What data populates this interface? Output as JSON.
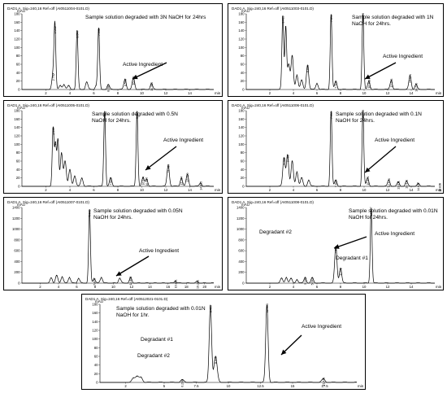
{
  "colors": {
    "trace": "#000000",
    "frame": "#000000",
    "background": "#ffffff"
  },
  "chart_data": [
    {
      "type": "line",
      "header": "DAD1 A, Sig=240,16 Ref=off (AI0511004-0101.D)",
      "ylabel": "mAU",
      "xlabel": "min",
      "ylim": [
        0,
        180
      ],
      "xlim": [
        0,
        16
      ],
      "yticks": [
        "0",
        "20",
        "40",
        "60",
        "80",
        "100",
        "120",
        "140",
        "160",
        "180"
      ],
      "xticks": [
        "2",
        "4",
        "6",
        "8",
        "10",
        "12",
        "14"
      ],
      "annotation": "Sample solution degraded with 3N NaOH for 24hrs",
      "arrow_label": "Active Ingredient",
      "peaks": [
        {
          "x": 2.6,
          "y": 38,
          "label": "2.792"
        },
        {
          "x": 2.75,
          "y": 150,
          "label": "3.051"
        },
        {
          "x": 3.2,
          "y": 10
        },
        {
          "x": 3.5,
          "y": 12
        },
        {
          "x": 3.9,
          "y": 9
        },
        {
          "x": 4.6,
          "y": 140,
          "label": "5.544"
        },
        {
          "x": 5.4,
          "y": 18
        },
        {
          "x": 6.2,
          "y": 10
        },
        {
          "x": 6.4,
          "y": 145,
          "label": "7.448"
        },
        {
          "x": 7.2,
          "y": 12,
          "label": "8.280"
        },
        {
          "x": 8.6,
          "y": 25,
          "label": "9.506"
        },
        {
          "x": 9.3,
          "y": 28,
          "label": "10.083"
        },
        {
          "x": 10.8,
          "y": 14,
          "label": "11.355"
        }
      ]
    },
    {
      "type": "line",
      "header": "DAD1 A, Sig=240,16 Ref=off (AI0511003-0101.D)",
      "ylabel": "mAU",
      "xlabel": "min",
      "ylim": [
        0,
        180
      ],
      "xlim": [
        0,
        16
      ],
      "yticks": [
        "0",
        "20",
        "40",
        "60",
        "80",
        "100",
        "120",
        "140",
        "160",
        "180"
      ],
      "xticks": [
        "2",
        "4",
        "6",
        "8",
        "10",
        "12",
        "14"
      ],
      "annotation": "Sample solution degraded with 1N NaOH for 24hrs.",
      "arrow_label": "Active Ingredient",
      "peaks": [
        {
          "x": 3.1,
          "y": 175,
          "label": "3.415"
        },
        {
          "x": 3.35,
          "y": 150
        },
        {
          "x": 3.6,
          "y": 60
        },
        {
          "x": 3.9,
          "y": 80
        },
        {
          "x": 4.3,
          "y": 35
        },
        {
          "x": 4.7,
          "y": 22
        },
        {
          "x": 5.2,
          "y": 58,
          "label": "5.606"
        },
        {
          "x": 6.0,
          "y": 15
        },
        {
          "x": 7.2,
          "y": 178,
          "label": "7.396"
        },
        {
          "x": 7.6,
          "y": 20,
          "label": "7.700"
        },
        {
          "x": 9.9,
          "y": 178,
          "label": "10.099"
        },
        {
          "x": 10.4,
          "y": 20,
          "label": "10.388"
        },
        {
          "x": 12.3,
          "y": 22,
          "label": "12.238"
        },
        {
          "x": 13.9,
          "y": 33,
          "label": "13.971"
        },
        {
          "x": 14.4,
          "y": 12,
          "label": "14.230"
        }
      ]
    },
    {
      "type": "line",
      "header": "DAD1 A, Sig=240,16 Ref=off (AI0511005-0101.D)",
      "ylabel": "mAU",
      "xlabel": "min",
      "ylim": [
        0,
        180
      ],
      "xlim": [
        0,
        16
      ],
      "yticks": [
        "0",
        "20",
        "40",
        "60",
        "80",
        "100",
        "120",
        "140",
        "160",
        "180"
      ],
      "xticks": [
        "2",
        "4",
        "6",
        "8",
        "10",
        "12",
        "14"
      ],
      "annotation": "Sample solution degraded with 0.5N NaOH for 24hrs.",
      "arrow_label": "Active Ingredient",
      "peaks": [
        {
          "x": 2.6,
          "y": 140,
          "label": "2.943"
        },
        {
          "x": 2.8,
          "y": 100
        },
        {
          "x": 3.0,
          "y": 110
        },
        {
          "x": 3.3,
          "y": 80
        },
        {
          "x": 3.6,
          "y": 60
        },
        {
          "x": 4.0,
          "y": 40
        },
        {
          "x": 4.4,
          "y": 25
        },
        {
          "x": 5.0,
          "y": 20
        },
        {
          "x": 6.9,
          "y": 178,
          "label": "7.414"
        },
        {
          "x": 7.4,
          "y": 20,
          "label": "7.839"
        },
        {
          "x": 9.6,
          "y": 178,
          "label": "9.966"
        },
        {
          "x": 10.1,
          "y": 20,
          "label": "10.344"
        },
        {
          "x": 10.4,
          "y": 18,
          "label": "10.567"
        },
        {
          "x": 12.2,
          "y": 50,
          "label": "11.724"
        },
        {
          "x": 13.3,
          "y": 20,
          "label": "12.764"
        },
        {
          "x": 13.8,
          "y": 28,
          "label": "13.169"
        },
        {
          "x": 14.9,
          "y": 8,
          "label": "14.935"
        }
      ]
    },
    {
      "type": "line",
      "header": "DAD1 A, Sig=240,16 Ref=off (AI0511006-0101.D)",
      "ylabel": "mAU",
      "xlabel": "min",
      "ylim": [
        0,
        180
      ],
      "xlim": [
        0,
        16
      ],
      "yticks": [
        "0",
        "20",
        "40",
        "60",
        "80",
        "100",
        "120",
        "140",
        "160",
        "180"
      ],
      "xticks": [
        "2",
        "4",
        "6",
        "8",
        "10",
        "12",
        "14"
      ],
      "annotation": "Sample solution degraded with 0.1N NaOH for 24hrs.",
      "arrow_label": "Active Ingredient",
      "peaks": [
        {
          "x": 3.2,
          "y": 68,
          "label": "3.463"
        },
        {
          "x": 3.5,
          "y": 75,
          "label": "3.750"
        },
        {
          "x": 3.9,
          "y": 60
        },
        {
          "x": 4.3,
          "y": 35
        },
        {
          "x": 4.7,
          "y": 20
        },
        {
          "x": 5.3,
          "y": 15
        },
        {
          "x": 7.2,
          "y": 178,
          "label": "7.415"
        },
        {
          "x": 7.6,
          "y": 15,
          "label": "7.846"
        },
        {
          "x": 9.9,
          "y": 178,
          "label": "10.099"
        },
        {
          "x": 10.3,
          "y": 20,
          "label": "10.371"
        },
        {
          "x": 12.1,
          "y": 15,
          "label": "12.176"
        },
        {
          "x": 12.9,
          "y": 10,
          "label": "13.011"
        },
        {
          "x": 13.6,
          "y": 12,
          "label": "13.471"
        },
        {
          "x": 14.6,
          "y": 6,
          "label": "14.617"
        },
        {
          "x": 16.4,
          "y": 4,
          "label": "16.818"
        },
        {
          "x": 18.3,
          "y": 4,
          "label": "18.289"
        }
      ]
    },
    {
      "type": "line",
      "header": "DAD1 A, Sig=240,16 Ref=off (AI0511007-0101.D)",
      "ylabel": "mAU",
      "xlabel": "min",
      "ylim": [
        0,
        1400
      ],
      "xlim": [
        0,
        21
      ],
      "yticks": [
        "0",
        "200",
        "400",
        "600",
        "800",
        "1000",
        "1200",
        "1400"
      ],
      "xticks": [
        "2",
        "4",
        "6",
        "8",
        "10",
        "12",
        "14",
        "16",
        "18",
        "20"
      ],
      "annotation": "Sample solution degraded with 0.05N NaOH for 24hrs.",
      "arrow_label": "Active Ingredient",
      "peaks": [
        {
          "x": 3.2,
          "y": 100
        },
        {
          "x": 3.8,
          "y": 140
        },
        {
          "x": 4.4,
          "y": 120
        },
        {
          "x": 5.2,
          "y": 110
        },
        {
          "x": 6.2,
          "y": 90
        },
        {
          "x": 7.4,
          "y": 1360,
          "label": "7.440"
        },
        {
          "x": 7.9,
          "y": 90,
          "label": "7.870"
        },
        {
          "x": 8.7,
          "y": 110
        },
        {
          "x": 10.7,
          "y": 95
        },
        {
          "x": 11.9,
          "y": 100,
          "label": "11.855"
        },
        {
          "x": 16.8,
          "y": 40,
          "label": "16.851"
        },
        {
          "x": 19.2,
          "y": 30,
          "label": "19.281"
        }
      ]
    },
    {
      "type": "line",
      "header": "DAD1 A, Sig=240,16 Ref=off (AI0511008-0101.D)",
      "ylabel": "mAU",
      "xlabel": "min",
      "ylim": [
        0,
        1400
      ],
      "xlim": [
        0,
        16
      ],
      "yticks": [
        "0",
        "200",
        "400",
        "600",
        "800",
        "1000",
        "1200",
        "1400"
      ],
      "xticks": [
        "2",
        "4",
        "6",
        "8",
        "10",
        "12",
        "14"
      ],
      "annotation": "Sample solution degraded with 0.01N NaOH for 24hrs.",
      "arrow_label": "Active Ingredient",
      "labels": [
        "Degradant #2",
        "Degradant #1"
      ],
      "peaks": [
        {
          "x": 3.0,
          "y": 90
        },
        {
          "x": 3.4,
          "y": 110
        },
        {
          "x": 3.8,
          "y": 85
        },
        {
          "x": 4.3,
          "y": 70
        },
        {
          "x": 5.0,
          "y": 110,
          "label": "5.199"
        },
        {
          "x": 5.6,
          "y": 100,
          "label": "5.642"
        },
        {
          "x": 7.6,
          "y": 680,
          "label": "7.890"
        },
        {
          "x": 8.0,
          "y": 280,
          "label": "8.271"
        },
        {
          "x": 10.6,
          "y": 1380,
          "label": "10.667"
        }
      ]
    },
    {
      "type": "line",
      "header": "DAD1 A, Sig=240,16 Ref=off (AI0512021-0101.D)",
      "ylabel": "mAU",
      "xlabel": "min",
      "ylim": [
        0,
        180
      ],
      "xlim": [
        0,
        20
      ],
      "yticks": [
        "0",
        "20",
        "40",
        "60",
        "80",
        "100",
        "120",
        "140",
        "160",
        "180"
      ],
      "xticks": [
        "2",
        "5",
        "7.5",
        "10",
        "12.5",
        "15",
        "17.5"
      ],
      "annotation": "Sample solution degraded with 0.01N NaOH for 1hr.",
      "arrow_label": "Active Ingredient",
      "labels": [
        "Degradant #1",
        "Degradant #2"
      ],
      "peaks": [
        {
          "x": 2.6,
          "y": 10
        },
        {
          "x": 2.9,
          "y": 14
        },
        {
          "x": 3.2,
          "y": 12
        },
        {
          "x": 6.4,
          "y": 6,
          "label": "6.238"
        },
        {
          "x": 8.6,
          "y": 178,
          "label": "8.460"
        },
        {
          "x": 9.0,
          "y": 60,
          "label": "8.911"
        },
        {
          "x": 13.0,
          "y": 178,
          "label": "12.883"
        },
        {
          "x": 17.4,
          "y": 8,
          "label": "17.478"
        }
      ]
    }
  ]
}
